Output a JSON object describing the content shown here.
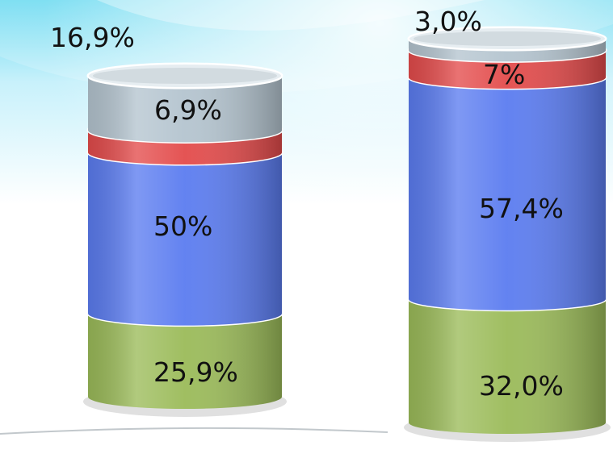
{
  "chart_data": {
    "type": "bar",
    "stacked": true,
    "style": "3d-cylinder",
    "categories": [
      "",
      ""
    ],
    "series": [
      {
        "values": [
          25.9,
          32.0
        ],
        "labels": [
          "25,9%",
          "32,0%"
        ],
        "color": "#9bbb59"
      },
      {
        "values": [
          50,
          57.4
        ],
        "labels": [
          "50%",
          "57,4%"
        ],
        "color": "#5b7cf0"
      },
      {
        "values": [
          6.9,
          7
        ],
        "labels": [
          "6,9%",
          "7%"
        ],
        "color": "#e34b4b"
      },
      {
        "values": [
          16.9,
          3.0
        ],
        "labels": [
          "16,9%",
          "3,0%"
        ],
        "color": "#b4c4cf"
      }
    ],
    "title": "",
    "xlabel": "",
    "ylabel": "",
    "grid": false,
    "legend": "none"
  }
}
